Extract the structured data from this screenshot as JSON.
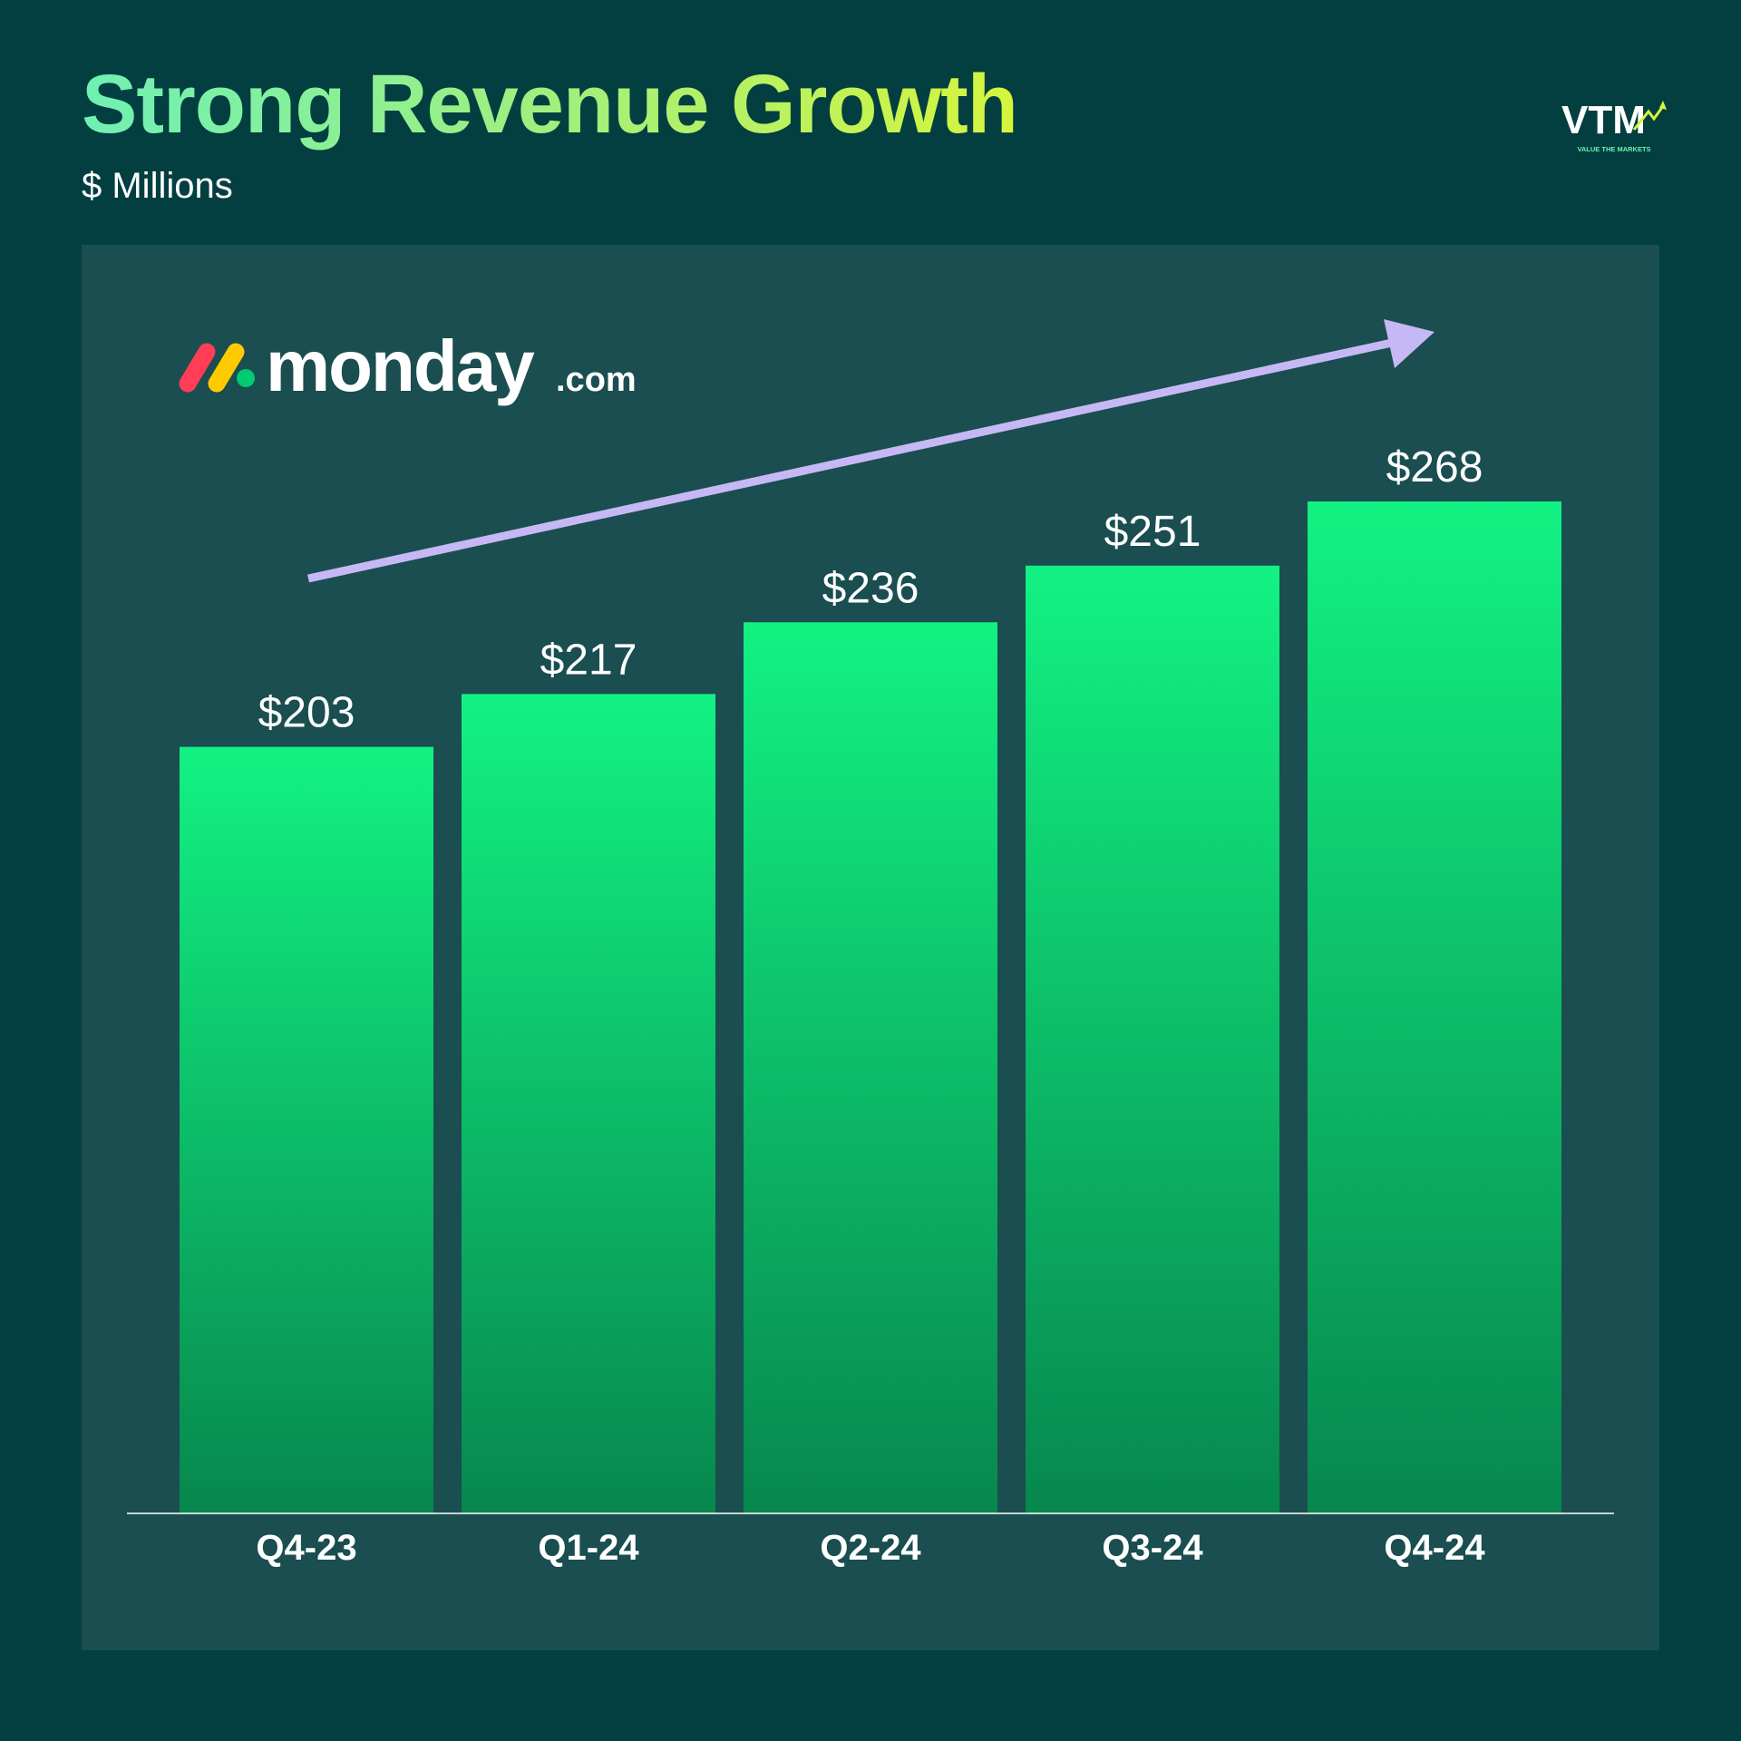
{
  "header": {
    "title": "Strong Revenue Growth",
    "subtitle": "$ Millions"
  },
  "brand": {
    "logo_text": "VTM",
    "logo_tagline": "VALUE THE MARKETS"
  },
  "company_logo": {
    "wordmark": "monday",
    "suffix": ".com",
    "dot_colors": [
      "#ff3d57",
      "#ffcb00",
      "#00ca72"
    ]
  },
  "colors": {
    "background": "#033f40",
    "panel": "#1a4e50",
    "bar_top": "#12f283",
    "bar_bottom": "#07874d",
    "trend_arrow": "#c6b8f5",
    "text": "#ffffff"
  },
  "chart_data": {
    "type": "bar",
    "title": "Strong Revenue Growth",
    "subtitle": "$ Millions",
    "categories": [
      "Q4-23",
      "Q1-24",
      "Q2-24",
      "Q3-24",
      "Q4-24"
    ],
    "values": [
      203,
      217,
      236,
      251,
      268
    ],
    "value_labels": [
      "$203",
      "$217",
      "$236",
      "$251",
      "$268"
    ],
    "ylim": [
      0,
      268
    ],
    "grid": false,
    "legend": "none",
    "annotations": [
      "upward trend arrow"
    ]
  }
}
